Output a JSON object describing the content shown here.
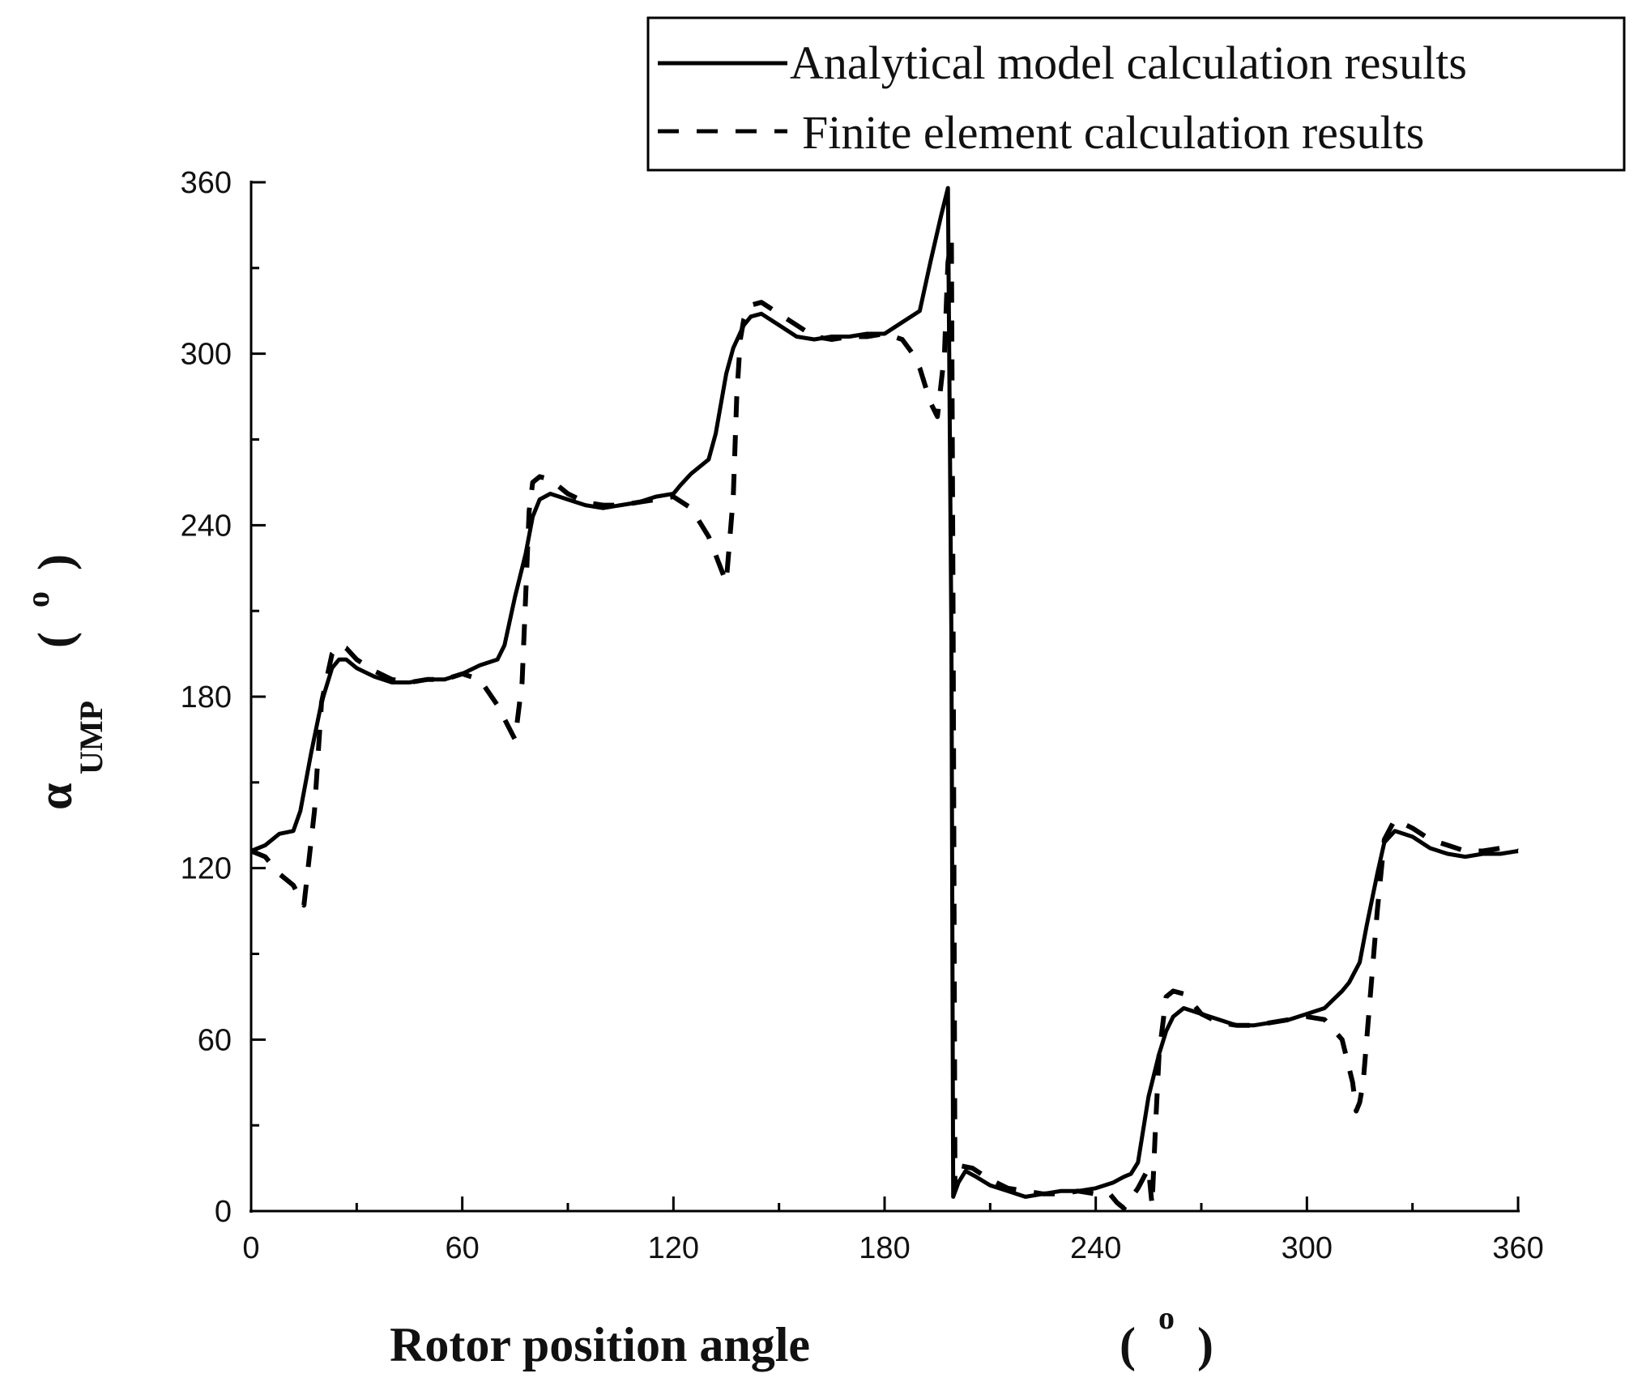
{
  "chart_data": {
    "type": "line",
    "title": "",
    "xlabel": "Rotor position angle ( ° )",
    "xlabel_parts": {
      "main": "Rotor position angle",
      "open": "(",
      "unit": "o",
      "close": ")"
    },
    "ylabel_parts": {
      "symbol": "α",
      "subscript": "UMP",
      "open": "(",
      "unit": "o",
      "close": ")"
    },
    "xlim": [
      0,
      360
    ],
    "ylim": [
      0,
      360
    ],
    "xticks": [
      0,
      60,
      120,
      180,
      240,
      300,
      360
    ],
    "yticks": [
      0,
      60,
      120,
      180,
      240,
      300,
      360
    ],
    "xticks_minor": [
      30,
      90,
      150,
      210,
      270,
      330
    ],
    "yticks_minor": [
      30,
      90,
      150,
      210,
      270,
      330
    ],
    "grid": false,
    "legend_position": "top-right",
    "series": [
      {
        "name": "Analytical model calculation results",
        "style": "solid",
        "color": "#000000",
        "x": [
          0,
          4,
          8,
          12,
          14,
          17,
          20,
          23,
          25,
          27,
          30,
          35,
          40,
          45,
          50,
          55,
          60,
          65,
          70,
          72,
          75,
          78,
          80,
          82,
          85,
          90,
          95,
          100,
          105,
          110,
          115,
          120,
          122,
          125,
          130,
          132,
          135,
          137,
          140,
          142,
          145,
          150,
          155,
          160,
          165,
          170,
          175,
          180,
          185,
          190,
          193,
          196,
          198,
          199,
          199.5,
          201,
          203,
          206,
          210,
          215,
          220,
          225,
          230,
          235,
          240,
          245,
          248,
          250,
          252,
          255,
          258,
          260,
          262,
          265,
          270,
          275,
          280,
          285,
          290,
          295,
          300,
          305,
          310,
          312,
          315,
          317,
          320,
          322,
          325,
          330,
          335,
          340,
          345,
          350,
          355,
          360
        ],
        "y": [
          126,
          128,
          132,
          133,
          140,
          160,
          178,
          190,
          193,
          193,
          190,
          187,
          185,
          185,
          186,
          186,
          188,
          191,
          193,
          198,
          215,
          230,
          243,
          249,
          251,
          249,
          247,
          246,
          247,
          248,
          250,
          251,
          254,
          258,
          263,
          272,
          293,
          302,
          310,
          313,
          314,
          310,
          306,
          305,
          306,
          306,
          307,
          307,
          311,
          315,
          332,
          348,
          358,
          200,
          5,
          10,
          14,
          12,
          9,
          7,
          5,
          6,
          7,
          7,
          8,
          10,
          12,
          13,
          17,
          40,
          55,
          63,
          68,
          71,
          69,
          67,
          65,
          65,
          66,
          67,
          69,
          71,
          77,
          80,
          87,
          100,
          118,
          129,
          133,
          131,
          127,
          125,
          124,
          125,
          125,
          126
        ]
      },
      {
        "name": "Finite element calculation results",
        "style": "dashed",
        "color": "#000000",
        "x": [
          0,
          4,
          8,
          12,
          15,
          18,
          20,
          23,
          25,
          27,
          30,
          35,
          40,
          45,
          50,
          55,
          60,
          65,
          70,
          75,
          77,
          78,
          79,
          80,
          82,
          85,
          90,
          95,
          100,
          105,
          110,
          115,
          120,
          125,
          130,
          135,
          137,
          138,
          139,
          140,
          142,
          145,
          150,
          155,
          160,
          165,
          170,
          175,
          180,
          185,
          188,
          190,
          193,
          195,
          197,
          198,
          199,
          199.5,
          200,
          201,
          205,
          210,
          215,
          220,
          225,
          230,
          235,
          240,
          244,
          246,
          248,
          252,
          255,
          256,
          257,
          258,
          260,
          262,
          265,
          268,
          270,
          275,
          280,
          285,
          290,
          295,
          300,
          305,
          310,
          313,
          314,
          315,
          316,
          318,
          320,
          322,
          325,
          330,
          335,
          340,
          345,
          350,
          355,
          360
        ],
        "y": [
          126,
          124,
          118,
          114,
          107,
          140,
          178,
          195,
          198,
          197,
          193,
          189,
          186,
          185,
          186,
          186,
          188,
          186,
          177,
          165,
          185,
          215,
          245,
          255,
          257,
          256,
          251,
          248,
          247,
          247,
          248,
          249,
          250,
          246,
          236,
          220,
          250,
          285,
          305,
          312,
          317,
          318,
          314,
          310,
          306,
          305,
          306,
          306,
          307,
          305,
          300,
          295,
          283,
          278,
          300,
          332,
          340,
          200,
          8,
          16,
          15,
          11,
          8,
          7,
          6,
          6,
          7,
          6,
          6,
          3,
          1,
          8,
          15,
          2,
          30,
          55,
          75,
          77,
          76,
          72,
          69,
          66,
          65,
          65,
          66,
          67,
          68,
          67,
          60,
          45,
          35,
          38,
          45,
          75,
          105,
          130,
          137,
          134,
          130,
          128,
          126,
          126,
          127,
          126
        ]
      }
    ]
  }
}
